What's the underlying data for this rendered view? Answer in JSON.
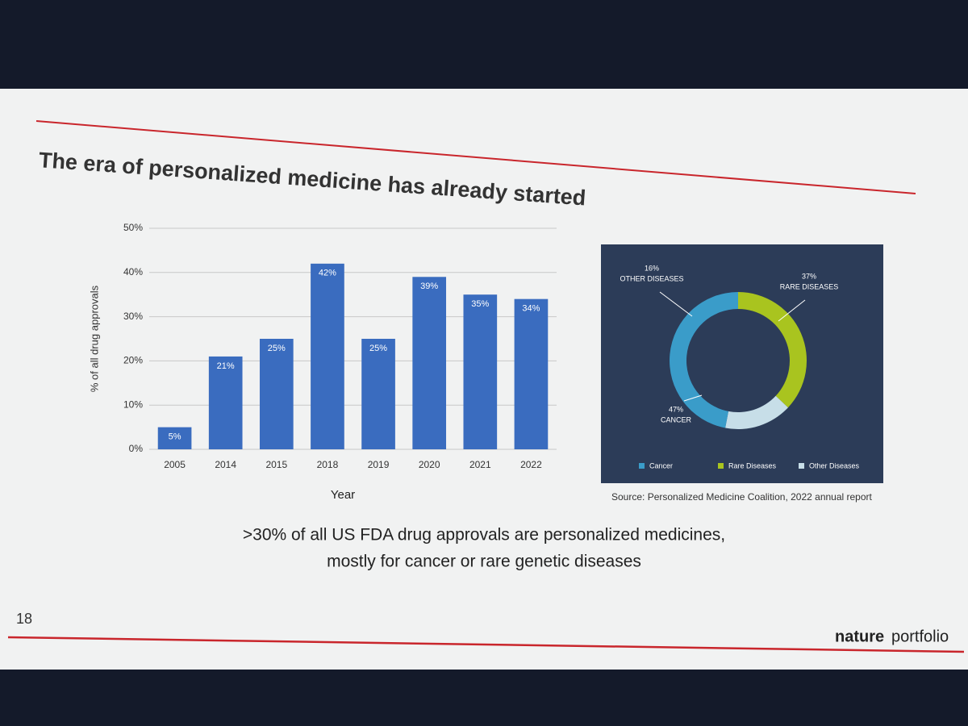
{
  "slide": {
    "title": "The era of personalized medicine has already started",
    "caption": [
      ">30% of all US FDA drug approvals are personalized medicines,",
      "mostly for cancer or rare genetic diseases"
    ],
    "page_number": "18",
    "logo_bold": "nature",
    "logo_light": "portfolio",
    "source": "Source: Personalized Medicine Coalition, 2022 annual report"
  },
  "chart_data": [
    {
      "type": "bar",
      "categories": [
        "2005",
        "2014",
        "2015",
        "2018",
        "2019",
        "2020",
        "2021",
        "2022"
      ],
      "values": [
        5,
        21,
        25,
        42,
        25,
        39,
        35,
        34
      ],
      "value_labels": [
        "5%",
        "21%",
        "25%",
        "42%",
        "25%",
        "39%",
        "35%",
        "34%"
      ],
      "color": "#3a6cbf",
      "x_label": "Year",
      "y_label": "% of all drug approvals",
      "ylim": [
        0,
        50
      ],
      "yticks": [
        {
          "value": 0,
          "label": "0%"
        },
        {
          "value": 10,
          "label": "10%"
        },
        {
          "value": 20,
          "label": "20%"
        },
        {
          "value": 30,
          "label": "30%"
        },
        {
          "value": 40,
          "label": "40%"
        },
        {
          "value": 50,
          "label": "50%"
        }
      ],
      "grid": true
    },
    {
      "type": "pie",
      "categories": [
        "Cancer",
        "Rare Diseases",
        "Other Diseases"
      ],
      "slice_labels": [
        "CANCER",
        "RARE DISEASES",
        "OTHER DISEASES"
      ],
      "values": [
        47,
        37,
        16
      ],
      "value_labels": [
        "47%",
        "37%",
        "16%"
      ],
      "colors": [
        "#3a9cc9",
        "#a9c41f",
        "#c7dee8"
      ],
      "background": "#2c3c58"
    }
  ]
}
